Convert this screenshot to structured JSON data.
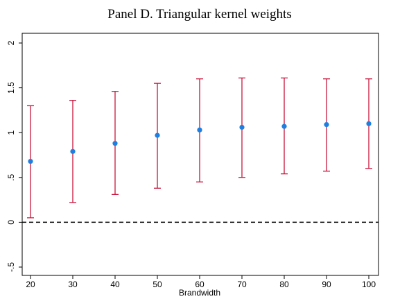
{
  "chart_data": {
    "type": "scatter",
    "title": "Panel D. Triangular kernel weights",
    "xlabel": "Brandwidth",
    "ylabel": "",
    "x": [
      20,
      30,
      40,
      50,
      60,
      70,
      80,
      90,
      100
    ],
    "xticks": [
      "20",
      "30",
      "40",
      "50",
      "60",
      "70",
      "80",
      "90",
      "100"
    ],
    "yticks": [
      {
        "value": -0.5,
        "label": "-.5"
      },
      {
        "value": 0,
        "label": "0"
      },
      {
        "value": 0.5,
        "label": ".5"
      },
      {
        "value": 1,
        "label": "1"
      },
      {
        "value": 1.5,
        "label": "1.5"
      },
      {
        "value": 2,
        "label": "2"
      }
    ],
    "ylim": [
      -0.5,
      2.0
    ],
    "series": [
      {
        "estimate": [
          0.68,
          0.79,
          0.88,
          0.97,
          1.03,
          1.06,
          1.07,
          1.09,
          1.1
        ],
        "ci_low": [
          0.05,
          0.22,
          0.31,
          0.38,
          0.45,
          0.5,
          0.54,
          0.57,
          0.6
        ],
        "ci_high": [
          1.3,
          1.36,
          1.46,
          1.55,
          1.6,
          1.61,
          1.61,
          1.6,
          1.6
        ]
      }
    ],
    "reference_line": {
      "y": 0,
      "style": "dashed"
    },
    "colors": {
      "estimate": "#1e7fe0",
      "ci": "#c8143c"
    },
    "grid": false,
    "legend": "none"
  }
}
